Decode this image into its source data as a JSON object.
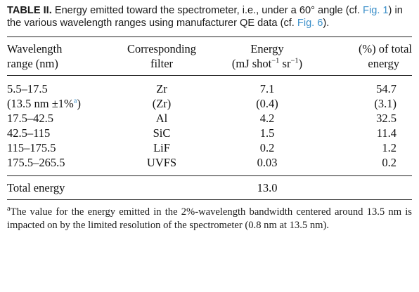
{
  "caption": {
    "label": "TABLE II.",
    "text_before_fig1": " Energy emitted toward the spectrometer, i.e., under a 60° angle (cf. ",
    "fig1": "Fig. 1",
    "text_between": ") in the various wavelength ranges using manufacturer QE data (cf. ",
    "fig6": "Fig. 6",
    "text_end": ")."
  },
  "table": {
    "headers": {
      "col1_line1": "Wavelength",
      "col1_line2": "range (nm)",
      "col2_line1": "Corresponding",
      "col2_line2": "filter",
      "col3_line1": "Energy",
      "col3_line2_a": "(mJ shot",
      "col3_sup1": "−1",
      "col3_line2_b": " sr",
      "col3_sup2": "−1",
      "col3_line2_c": ")",
      "col4_line1": "(%) of total",
      "col4_line2": "energy"
    },
    "rows": [
      {
        "range": "5.5–17.5",
        "filter": "Zr",
        "energy": "7.1",
        "percent": "54.7"
      },
      {
        "range_a": "(13.5 nm ±1%",
        "range_sup": "a",
        "range_b": ")",
        "filter": "(Zr)",
        "energy": "(0.4)",
        "percent": "(3.1)"
      },
      {
        "range": "17.5–42.5",
        "filter": "Al",
        "energy": "4.2",
        "percent": "32.5"
      },
      {
        "range": "42.5–115",
        "filter": "SiC",
        "energy": "1.5",
        "percent": "11.4"
      },
      {
        "range": "115–175.5",
        "filter": "LiF",
        "energy": "0.2",
        "percent": "1.2"
      },
      {
        "range": "175.5–265.5",
        "filter": "UVFS",
        "energy": "0.03",
        "percent": "0.2"
      }
    ],
    "total": {
      "label": "Total energy",
      "energy": "13.0"
    }
  },
  "footnote": {
    "mark": "a",
    "text": "The value for the energy emitted in the 2%-wavelength bandwidth centered around 13.5 nm is impacted on by the limited resolution of the spectrometer (0.8 nm at 13.5 nm)."
  }
}
